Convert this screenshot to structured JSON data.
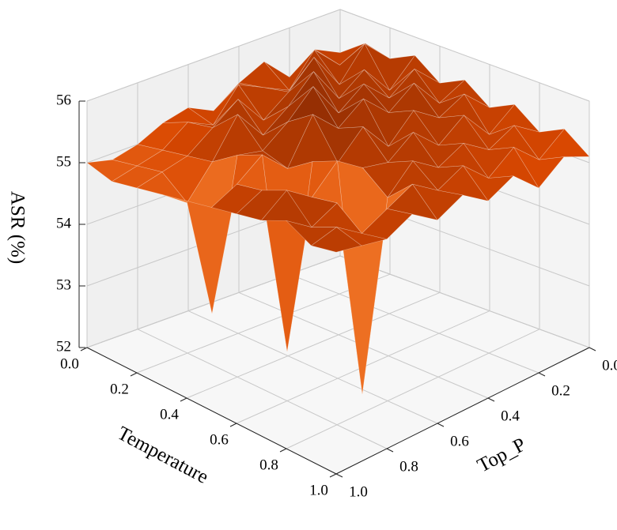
{
  "chart_data": {
    "type": "surface3d",
    "xlabel": "Temperature",
    "ylabel": "Top_P",
    "zlabel": "ASR (%)",
    "x": [
      0,
      0.1,
      0.2,
      0.3,
      0.4,
      0.5,
      0.6,
      0.7,
      0.8,
      0.9,
      1.0
    ],
    "y": [
      0,
      0.1,
      0.2,
      0.3,
      0.4,
      0.5,
      0.6,
      0.7,
      0.8,
      0.9,
      1.0
    ],
    "z": [
      [
        55.3,
        55.5,
        55.2,
        55.6,
        55.4,
        55.1,
        55.3,
        55.2,
        55.0,
        54.9,
        55.0
      ],
      [
        55.6,
        55.4,
        55.8,
        55.3,
        55.5,
        55.7,
        55.2,
        55.4,
        55.1,
        55.0,
        54.9
      ],
      [
        55.5,
        55.9,
        55.4,
        56.0,
        55.6,
        55.3,
        55.8,
        55.5,
        55.2,
        55.1,
        55.0
      ],
      [
        55.7,
        55.3,
        55.8,
        55.5,
        56.1,
        55.7,
        55.4,
        55.9,
        55.3,
        54.8,
        55.1
      ],
      [
        55.4,
        55.8,
        55.5,
        55.9,
        55.6,
        56.2,
        55.8,
        55.5,
        55.6,
        53.2,
        55.2
      ],
      [
        55.6,
        55.4,
        55.9,
        55.6,
        56.0,
        55.7,
        56.1,
        55.4,
        55.8,
        55.5,
        55.3
      ],
      [
        55.3,
        55.7,
        55.5,
        55.8,
        55.4,
        55.9,
        55.5,
        55.7,
        52.8,
        55.6,
        55.4
      ],
      [
        55.5,
        55.2,
        55.7,
        55.4,
        55.8,
        55.5,
        55.6,
        55.9,
        55.5,
        55.8,
        55.5
      ],
      [
        55.2,
        55.5,
        55.3,
        55.6,
        55.4,
        55.7,
        55.3,
        52.3,
        55.6,
        55.4,
        55.7
      ],
      [
        55.4,
        55.1,
        55.5,
        55.2,
        55.6,
        55.4,
        55.7,
        55.5,
        55.3,
        55.6,
        55.5
      ],
      [
        55.1,
        55.3,
        55.0,
        55.4,
        55.2,
        55.5,
        55.3,
        55.6,
        55.4,
        55.5,
        55.6
      ]
    ],
    "xlim": [
      0,
      1
    ],
    "ylim": [
      0,
      1
    ],
    "zlim": [
      52,
      56
    ],
    "xticks": [
      {
        "value": 0,
        "label": "0.0"
      },
      {
        "value": 0.2,
        "label": "0.2"
      },
      {
        "value": 0.4,
        "label": "0.4"
      },
      {
        "value": 0.6,
        "label": "0.6"
      },
      {
        "value": 0.8,
        "label": "0.8"
      },
      {
        "value": 1,
        "label": "1.0"
      }
    ],
    "yticks": [
      {
        "value": 0,
        "label": "0.0"
      },
      {
        "value": 0.2,
        "label": "0.2"
      },
      {
        "value": 0.4,
        "label": "0.4"
      },
      {
        "value": 0.6,
        "label": "0.6"
      },
      {
        "value": 0.8,
        "label": "0.8"
      },
      {
        "value": 1,
        "label": "1.0"
      }
    ],
    "zticks": [
      52,
      53,
      54,
      55,
      56
    ],
    "grid": true,
    "colormap": [
      "#fff5eb",
      "#fdd0a2",
      "#fd8d3c",
      "#d94801",
      "#7f2704"
    ]
  }
}
